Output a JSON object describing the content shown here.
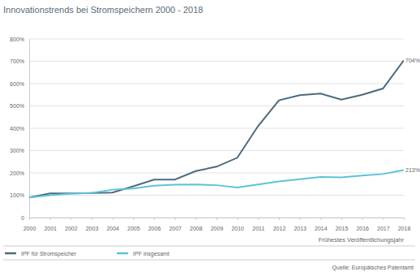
{
  "chart_data": {
    "type": "line",
    "title": "Innovationstrends bei Stromspeichern 2000 - 2018",
    "x_label": "Frühestes Veröffentlichungsjahr",
    "source": "Quelle: Europäisches Patentamt",
    "categories": [
      "2000",
      "2001",
      "2002",
      "2003",
      "2004",
      "2005",
      "2006",
      "2007",
      "2008",
      "2009",
      "2010",
      "2011",
      "2012",
      "2013",
      "2014",
      "2015",
      "2016",
      "2017",
      "2018"
    ],
    "series": [
      {
        "name": "IPF für Stromspeicher",
        "color": "#4d6a7c",
        "values": [
          90,
          108,
          108,
          110,
          112,
          140,
          170,
          170,
          208,
          228,
          268,
          410,
          525,
          548,
          555,
          528,
          550,
          578,
          704
        ]
      },
      {
        "name": "IPF insgesamt",
        "color": "#5cc3d8",
        "values": [
          90,
          100,
          107,
          110,
          125,
          130,
          143,
          147,
          148,
          145,
          135,
          148,
          162,
          172,
          182,
          180,
          188,
          195,
          213
        ]
      }
    ],
    "annotations": [
      "704%",
      "213%"
    ],
    "ylim": [
      0,
      800
    ],
    "yticks": [
      {
        "value": 0,
        "label": "0"
      },
      {
        "value": 100,
        "label": "100%"
      },
      {
        "value": 200,
        "label": "200%"
      },
      {
        "value": 300,
        "label": "300%"
      },
      {
        "value": 400,
        "label": "400%"
      },
      {
        "value": 500,
        "label": "500%"
      },
      {
        "value": 600,
        "label": "600%"
      },
      {
        "value": 700,
        "label": "700%"
      },
      {
        "value": 800,
        "label": "800%"
      }
    ],
    "grid": true,
    "legend": "bottom"
  }
}
